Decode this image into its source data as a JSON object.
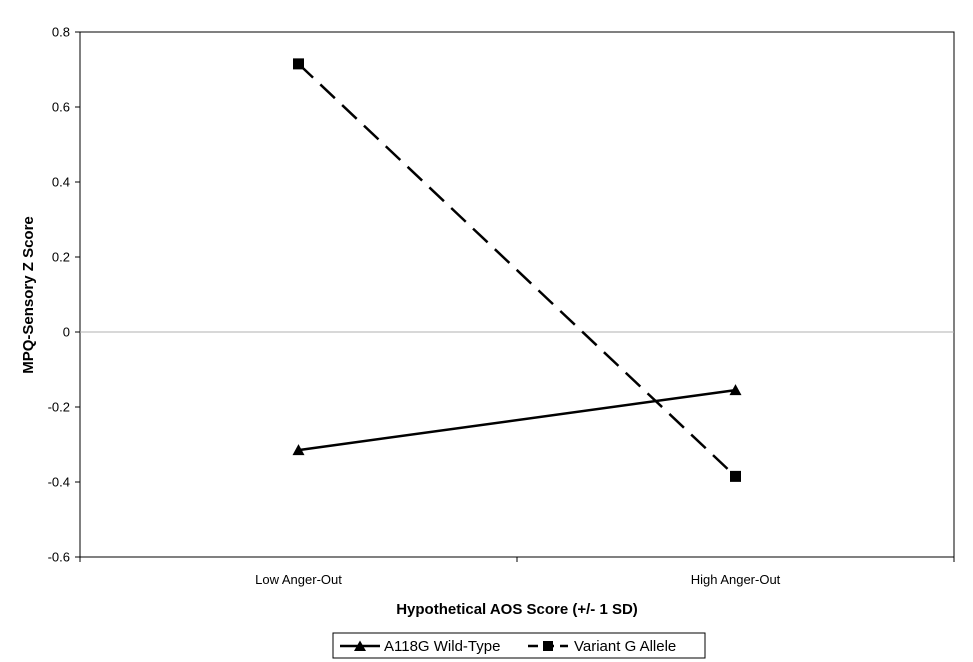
{
  "chart_data": {
    "type": "line",
    "title": "",
    "xlabel": "Hypothetical AOS Score (+/- 1 SD)",
    "ylabel": "MPQ-Sensory Z Score",
    "categories": [
      "Low Anger-Out",
      "High Anger-Out"
    ],
    "ylim": [
      -0.6,
      0.8
    ],
    "yticks": [
      0.8,
      0.6,
      0.4,
      0.2,
      0,
      -0.2,
      -0.4,
      -0.6
    ],
    "grid": false,
    "zero_line": true,
    "legend_position": "bottom",
    "series": [
      {
        "name": "A118G Wild-Type",
        "values": [
          -0.315,
          -0.155
        ],
        "marker": "triangle",
        "line_style": "solid",
        "color": "#000000"
      },
      {
        "name": "Variant G Allele",
        "values": [
          0.715,
          -0.385
        ],
        "marker": "square",
        "line_style": "dashed",
        "color": "#000000"
      }
    ]
  }
}
